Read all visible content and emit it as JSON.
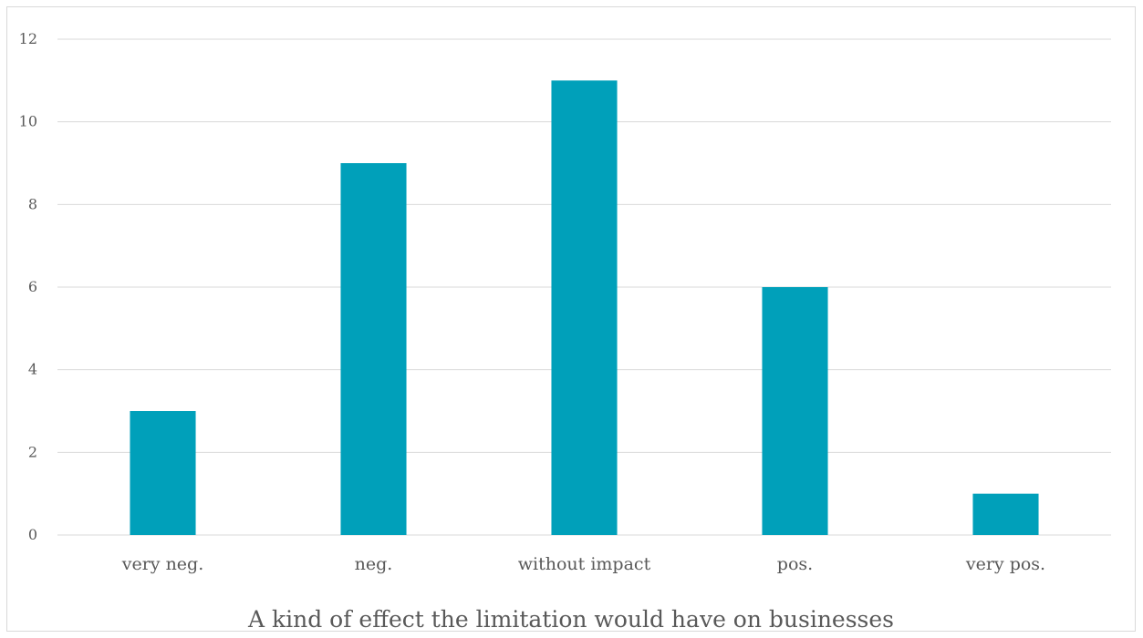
{
  "chart_data": {
    "type": "bar",
    "title": "",
    "xlabel": "A kind of effect the limitation would have on businesses",
    "ylabel": "",
    "categories": [
      "very neg.",
      "neg.",
      "without impact",
      "pos.",
      "very pos."
    ],
    "values": [
      3,
      9,
      11,
      6,
      1
    ],
    "ylim": [
      0,
      12
    ],
    "yticks": [
      0,
      2,
      4,
      6,
      8,
      10,
      12
    ],
    "grid": true,
    "legend": "none",
    "colors": {
      "bar": "#00A0BA",
      "grid": "#d9d9d9",
      "text": "#595959"
    }
  }
}
